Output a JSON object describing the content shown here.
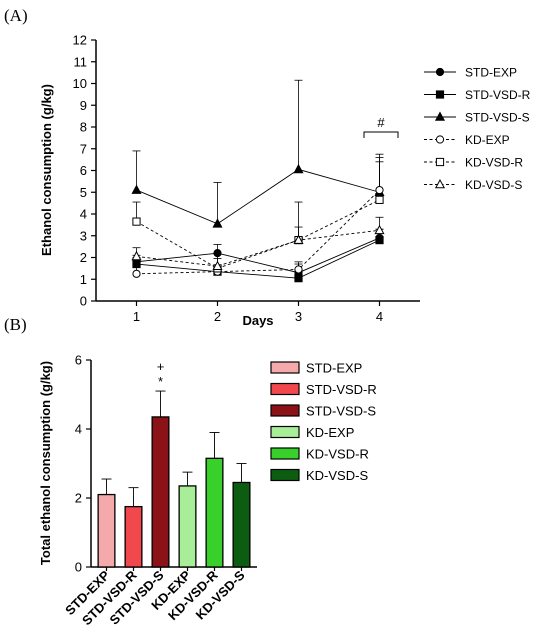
{
  "panel_a_label": "(A)",
  "panel_b_label": "(B)",
  "chart_data": [
    {
      "type": "line",
      "xlabel": "Days",
      "ylabel": "Ethanol consumption (g/kg)",
      "x": [
        1,
        2,
        3,
        4
      ],
      "xlim": [
        0.5,
        4.5
      ],
      "ylim": [
        0,
        12
      ],
      "yticks": [
        0,
        1,
        2,
        3,
        4,
        5,
        6,
        7,
        8,
        9,
        10,
        11,
        12
      ],
      "legend_position": "right",
      "annotation": "#",
      "series": [
        {
          "name": "STD-EXP",
          "marker": "circle",
          "fill": "filled",
          "dash": "solid",
          "values": [
            1.8,
            2.2,
            1.3,
            2.9
          ],
          "err": [
            0.3,
            0.4,
            0.4,
            0.4
          ]
        },
        {
          "name": "STD-VSD-R",
          "marker": "square",
          "fill": "filled",
          "dash": "solid",
          "values": [
            1.7,
            1.35,
            1.05,
            2.8
          ],
          "err": [
            0.3,
            0.3,
            0.3,
            0.5
          ]
        },
        {
          "name": "STD-VSD-S",
          "marker": "triangle",
          "fill": "filled",
          "dash": "solid",
          "values": [
            5.1,
            3.55,
            6.05,
            5.0
          ],
          "err": [
            1.8,
            1.9,
            4.1,
            1.6
          ]
        },
        {
          "name": "KD-EXP",
          "marker": "circle",
          "fill": "open",
          "dash": "dashed",
          "values": [
            1.25,
            1.35,
            1.45,
            5.1
          ],
          "err": [
            0.3,
            0.3,
            0.35,
            1.3
          ]
        },
        {
          "name": "KD-VSD-R",
          "marker": "square",
          "fill": "open",
          "dash": "dashed",
          "values": [
            3.65,
            1.5,
            2.8,
            4.65
          ],
          "err": [
            0.9,
            0.7,
            1.75,
            2.1
          ]
        },
        {
          "name": "KD-VSD-S",
          "marker": "triangle",
          "fill": "open",
          "dash": "dashed",
          "values": [
            2.05,
            1.6,
            2.8,
            3.25
          ],
          "err": [
            0.4,
            0.35,
            0.6,
            0.6
          ]
        }
      ]
    },
    {
      "type": "bar",
      "ylabel": "Total ethanol consumption (g/kg)",
      "ylim": [
        0,
        6
      ],
      "yticks": [
        0,
        2,
        4,
        6
      ],
      "categories": [
        "STD-EXP",
        "STD-VSD-R",
        "STD-VSD-S",
        "KD-EXP",
        "KD-VSD-R",
        "KD-VSD-S"
      ],
      "values": [
        2.1,
        1.75,
        4.35,
        2.35,
        3.15,
        2.45
      ],
      "err": [
        0.45,
        0.55,
        0.75,
        0.4,
        0.75,
        0.55
      ],
      "colors": [
        "#f4a9aa",
        "#f0484d",
        "#8b1216",
        "#a8ee98",
        "#3ad02b",
        "#0c5d12"
      ],
      "legend_position": "right",
      "annotations": [
        "+",
        "*"
      ]
    }
  ]
}
